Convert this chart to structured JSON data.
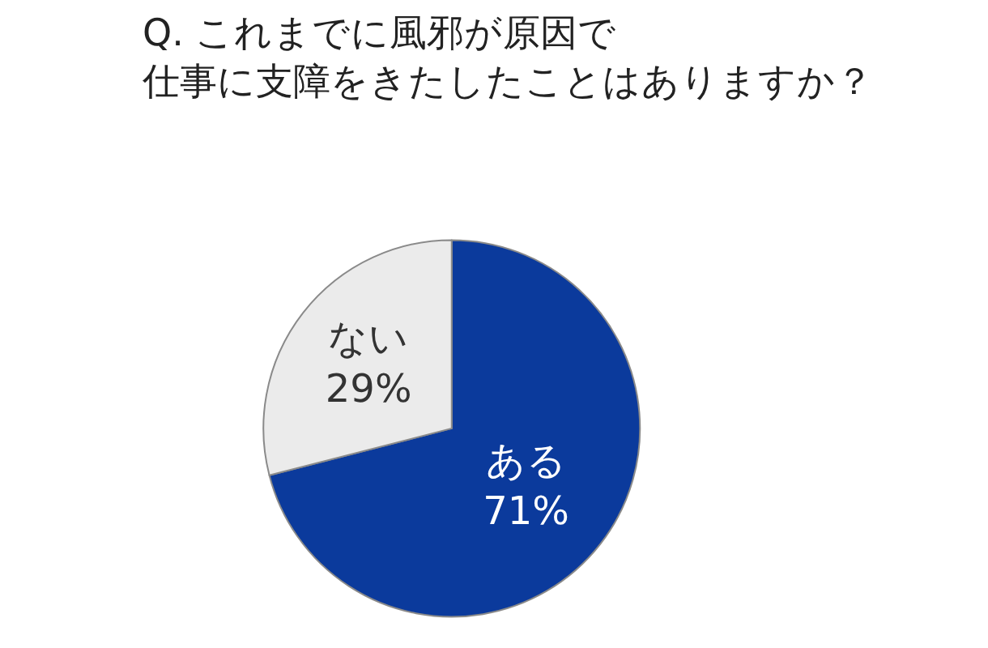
{
  "chart_data": {
    "type": "pie",
    "title": "Q. これまでに風邪が原因で仕事に支障をきたしたことはありますか？",
    "categories": [
      "ある",
      "ない"
    ],
    "values": [
      71,
      29
    ],
    "value_labels": [
      "71%",
      "29%"
    ],
    "colors": [
      "#0b3a9c",
      "#ebebeb"
    ],
    "legend": false
  }
}
